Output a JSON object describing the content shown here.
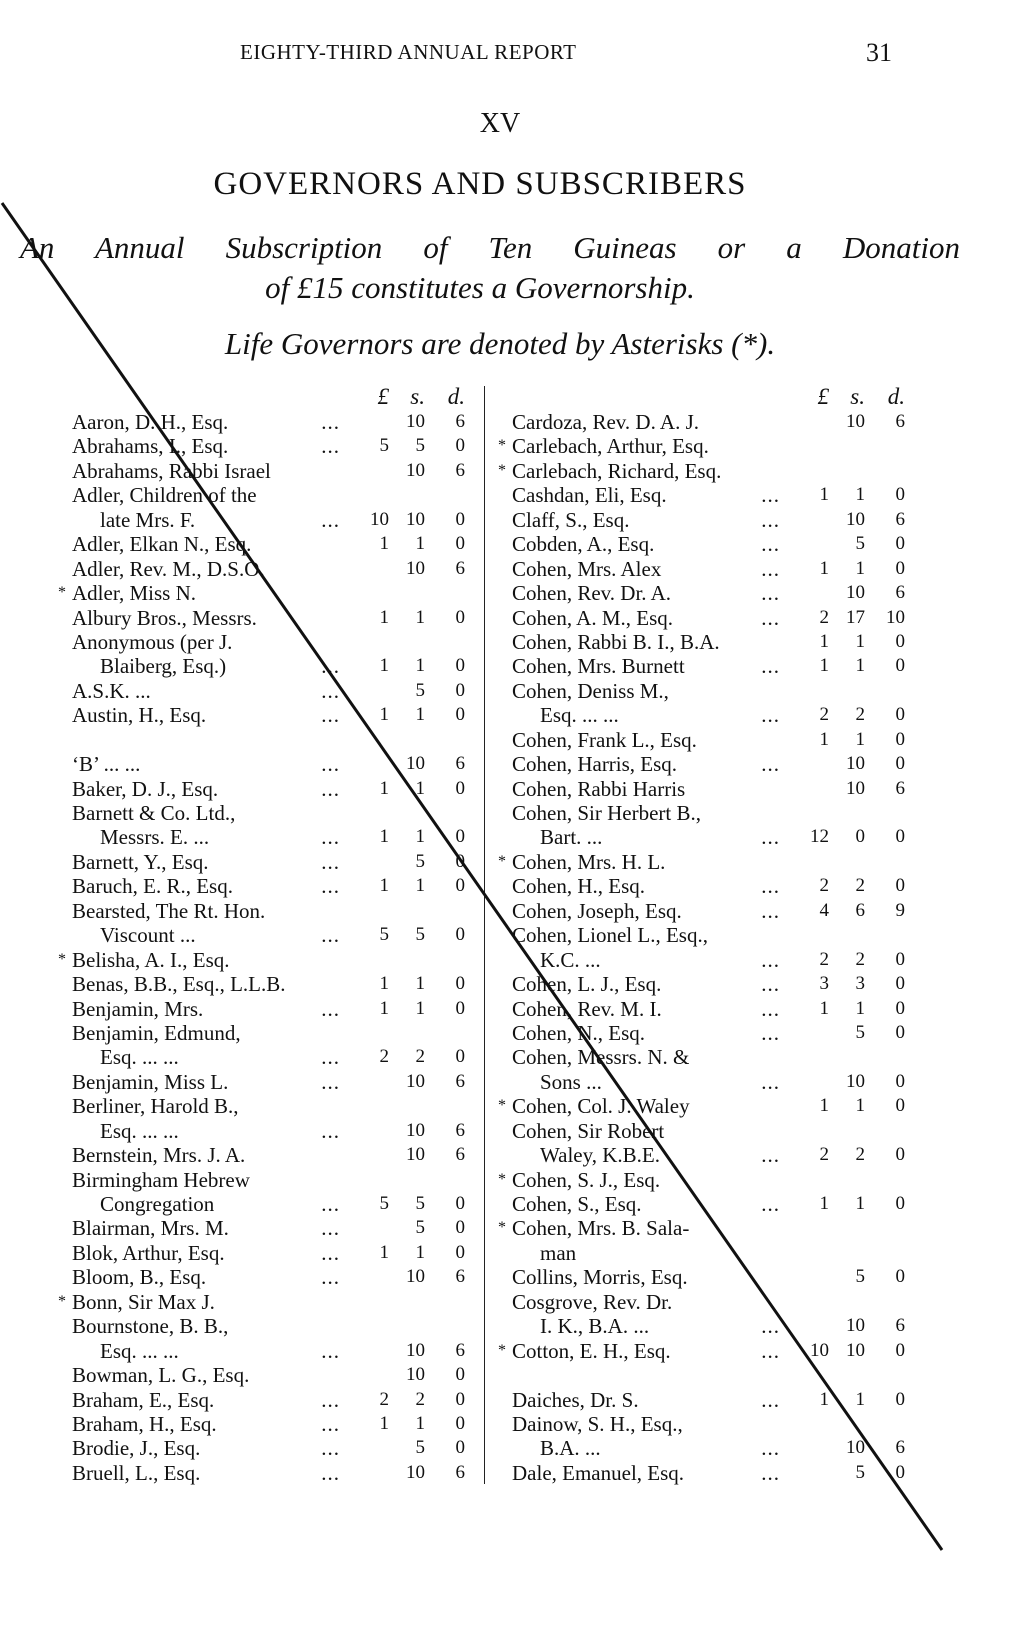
{
  "header": {
    "running_title": "EIGHTY-THIRD ANNUAL REPORT",
    "page_number": "31"
  },
  "section": "XV",
  "title": "GOVERNORS AND SUBSCRIBERS",
  "subtitle_lines": [
    "An Annual Subscription of Ten Guineas or a Donation",
    "of £15 constitutes a Governorship.",
    "Life Governors are denoted by Asterisks (*)."
  ],
  "column_headers": {
    "pounds": "£",
    "shillings": "s.",
    "pence": "d."
  },
  "left_column": [
    {
      "name": "Aaron, D. H., Esq.",
      "leader": "...",
      "l": "",
      "s": "10",
      "d": "6"
    },
    {
      "name": "Abrahams, I., Esq.",
      "leader": "...",
      "l": "5",
      "s": "5",
      "d": "0"
    },
    {
      "name": "Abrahams, Rabbi Israel",
      "leader": "",
      "l": "",
      "s": "10",
      "d": "6"
    },
    {
      "name": "Adler, Children of the",
      "leader": "",
      "l": "",
      "s": "",
      "d": ""
    },
    {
      "name": "late Mrs. F.",
      "cont": true,
      "leader": "...",
      "l": "10",
      "s": "10",
      "d": "0"
    },
    {
      "name": "Adler, Elkan N., Esq.",
      "leader": "",
      "l": "1",
      "s": "1",
      "d": "0"
    },
    {
      "name": "Adler, Rev. M., D.S.O.",
      "leader": "",
      "l": "",
      "s": "10",
      "d": "6"
    },
    {
      "name": "Adler, Miss N.",
      "life": true,
      "leader": "",
      "l": "",
      "s": "",
      "d": ""
    },
    {
      "name": "Albury Bros., Messrs.",
      "leader": "",
      "l": "1",
      "s": "1",
      "d": "0"
    },
    {
      "name": "Anonymous   (per   J.",
      "leader": "",
      "l": "",
      "s": "",
      "d": ""
    },
    {
      "name": "Blaiberg, Esq.)",
      "cont": true,
      "leader": "...",
      "l": "1",
      "s": "1",
      "d": "0"
    },
    {
      "name": "A.S.K.      ...",
      "leader": "...",
      "l": "",
      "s": "5",
      "d": "0"
    },
    {
      "name": "Austin, H., Esq.",
      "leader": "...",
      "l": "1",
      "s": "1",
      "d": "0"
    },
    {
      "name": "",
      "leader": "",
      "l": "",
      "s": "",
      "d": ""
    },
    {
      "name": "‘B’      ...      ...",
      "leader": "...",
      "l": "",
      "s": "10",
      "d": "6"
    },
    {
      "name": "Baker, D. J., Esq.",
      "leader": "...",
      "l": "1",
      "s": "1",
      "d": "0"
    },
    {
      "name": "Barnett  &  Co.  Ltd.,",
      "leader": "",
      "l": "",
      "s": "",
      "d": ""
    },
    {
      "name": "Messrs. E. ...",
      "cont": true,
      "leader": "...",
      "l": "1",
      "s": "1",
      "d": "0"
    },
    {
      "name": "Barnett, Y., Esq.",
      "leader": "...",
      "l": "",
      "s": "5",
      "d": "0"
    },
    {
      "name": "Baruch, E. R., Esq.",
      "leader": "...",
      "l": "1",
      "s": "1",
      "d": "0"
    },
    {
      "name": "Bearsted, The Rt. Hon.",
      "leader": "",
      "l": "",
      "s": "",
      "d": ""
    },
    {
      "name": "Viscount   ...",
      "cont": true,
      "leader": "...",
      "l": "5",
      "s": "5",
      "d": "0"
    },
    {
      "name": "Belisha, A. I., Esq.",
      "life": true,
      "leader": "",
      "l": "",
      "s": "",
      "d": ""
    },
    {
      "name": "Benas, B.B., Esq., L.L.B.",
      "leader": "",
      "l": "1",
      "s": "1",
      "d": "0"
    },
    {
      "name": "Benjamin, Mrs.",
      "leader": "...",
      "l": "1",
      "s": "1",
      "d": "0"
    },
    {
      "name": "Benjamin,      Edmund,",
      "leader": "",
      "l": "",
      "s": "",
      "d": ""
    },
    {
      "name": "Esq. ...     ...",
      "cont": true,
      "leader": "...",
      "l": "2",
      "s": "2",
      "d": "0"
    },
    {
      "name": "Benjamin, Miss L.",
      "leader": "...",
      "l": "",
      "s": "10",
      "d": "6"
    },
    {
      "name": "Berliner,    Harold    B.,",
      "leader": "",
      "l": "",
      "s": "",
      "d": ""
    },
    {
      "name": "Esq. ...     ...",
      "cont": true,
      "leader": "...",
      "l": "",
      "s": "10",
      "d": "6"
    },
    {
      "name": "Bernstein, Mrs. J. A.",
      "leader": "",
      "l": "",
      "s": "10",
      "d": "6"
    },
    {
      "name": "Birmingham   Hebrew",
      "leader": "",
      "l": "",
      "s": "",
      "d": ""
    },
    {
      "name": "Congregation",
      "cont": true,
      "leader": "...",
      "l": "5",
      "s": "5",
      "d": "0"
    },
    {
      "name": "Blairman, Mrs. M.",
      "leader": "...",
      "l": "",
      "s": "5",
      "d": "0"
    },
    {
      "name": "Blok, Arthur, Esq.",
      "leader": "...",
      "l": "1",
      "s": "1",
      "d": "0"
    },
    {
      "name": "Bloom, B., Esq.",
      "leader": "...",
      "l": "",
      "s": "10",
      "d": "6"
    },
    {
      "name": "Bonn, Sir Max J.",
      "life": true,
      "leader": "",
      "l": "",
      "s": "",
      "d": ""
    },
    {
      "name": "Bournstone,    B.    B.,",
      "leader": "",
      "l": "",
      "s": "",
      "d": ""
    },
    {
      "name": "Esq. ...     ...",
      "cont": true,
      "leader": "...",
      "l": "",
      "s": "10",
      "d": "6"
    },
    {
      "name": "Bowman, L. G., Esq.",
      "leader": "",
      "l": "",
      "s": "10",
      "d": "0"
    },
    {
      "name": "Braham, E., Esq.",
      "leader": "...",
      "l": "2",
      "s": "2",
      "d": "0"
    },
    {
      "name": "Braham, H., Esq.",
      "leader": "...",
      "l": "1",
      "s": "1",
      "d": "0"
    },
    {
      "name": "Brodie, J., Esq.",
      "leader": "...",
      "l": "",
      "s": "5",
      "d": "0"
    },
    {
      "name": "Bruell, L., Esq.",
      "leader": "...",
      "l": "",
      "s": "10",
      "d": "6"
    }
  ],
  "right_column": [
    {
      "name": "Cardoza, Rev. D. A. J.",
      "leader": "",
      "l": "",
      "s": "10",
      "d": "6"
    },
    {
      "name": "Carlebach, Arthur, Esq.",
      "life": true,
      "leader": "",
      "l": "",
      "s": "",
      "d": ""
    },
    {
      "name": "Carlebach, Richard, Esq.",
      "life": true,
      "leader": "",
      "l": "",
      "s": "",
      "d": ""
    },
    {
      "name": "Cashdan, Eli, Esq.",
      "leader": "...",
      "l": "1",
      "s": "1",
      "d": "0"
    },
    {
      "name": "Claff, S., Esq.",
      "leader": "...",
      "l": "",
      "s": "10",
      "d": "6"
    },
    {
      "name": "Cobden, A., Esq.",
      "leader": "...",
      "l": "",
      "s": "5",
      "d": "0"
    },
    {
      "name": "Cohen, Mrs. Alex",
      "leader": "...",
      "l": "1",
      "s": "1",
      "d": "0"
    },
    {
      "name": "Cohen, Rev. Dr. A.",
      "leader": "...",
      "l": "",
      "s": "10",
      "d": "6"
    },
    {
      "name": "Cohen, A. M., Esq.",
      "leader": "...",
      "l": "2",
      "s": "17",
      "d": "10"
    },
    {
      "name": "Cohen, Rabbi B. I., B.A.",
      "leader": "",
      "l": "1",
      "s": "1",
      "d": "0"
    },
    {
      "name": "Cohen, Mrs. Burnett",
      "leader": "...",
      "l": "1",
      "s": "1",
      "d": "0"
    },
    {
      "name": "Cohen,    Deniss    M.,",
      "leader": "",
      "l": "",
      "s": "",
      "d": ""
    },
    {
      "name": "Esq. ...     ...",
      "cont": true,
      "leader": "...",
      "l": "2",
      "s": "2",
      "d": "0"
    },
    {
      "name": "Cohen, Frank L., Esq.",
      "leader": "",
      "l": "1",
      "s": "1",
      "d": "0"
    },
    {
      "name": "Cohen, Harris, Esq.",
      "leader": "...",
      "l": "",
      "s": "10",
      "d": "0"
    },
    {
      "name": "Cohen, Rabbi Harris",
      "leader": "",
      "l": "",
      "s": "10",
      "d": "6"
    },
    {
      "name": "Cohen, Sir Herbert B.,",
      "leader": "",
      "l": "",
      "s": "",
      "d": ""
    },
    {
      "name": "Bart.      ...",
      "cont": true,
      "leader": "...",
      "l": "12",
      "s": "0",
      "d": "0"
    },
    {
      "name": "Cohen, Mrs. H. L.",
      "life": true,
      "leader": "",
      "l": "",
      "s": "",
      "d": ""
    },
    {
      "name": "Cohen, H., Esq.",
      "leader": "...",
      "l": "2",
      "s": "2",
      "d": "0"
    },
    {
      "name": "Cohen, Joseph, Esq.",
      "leader": "...",
      "l": "4",
      "s": "6",
      "d": "9"
    },
    {
      "name": "Cohen, Lionel L., Esq.,",
      "leader": "",
      "l": "",
      "s": "",
      "d": ""
    },
    {
      "name": "K.C.      ...",
      "cont": true,
      "leader": "...",
      "l": "2",
      "s": "2",
      "d": "0"
    },
    {
      "name": "Cohen, L. J., Esq.",
      "leader": "...",
      "l": "3",
      "s": "3",
      "d": "0"
    },
    {
      "name": "Cohen, Rev. M. I.",
      "leader": "...",
      "l": "1",
      "s": "1",
      "d": "0"
    },
    {
      "name": "Cohen, N., Esq.",
      "leader": "...",
      "l": "",
      "s": "5",
      "d": "0"
    },
    {
      "name": "Cohen, Messrs. N. &",
      "leader": "",
      "l": "",
      "s": "",
      "d": ""
    },
    {
      "name": "Sons      ...",
      "cont": true,
      "leader": "...",
      "l": "",
      "s": "10",
      "d": "0"
    },
    {
      "name": "Cohen, Col. J. Waley",
      "life": true,
      "leader": "",
      "l": "1",
      "s": "1",
      "d": "0"
    },
    {
      "name": "Cohen,    Sir    Robert",
      "leader": "",
      "l": "",
      "s": "",
      "d": ""
    },
    {
      "name": "Waley, K.B.E.",
      "cont": true,
      "leader": "...",
      "l": "2",
      "s": "2",
      "d": "0"
    },
    {
      "name": "Cohen, S. J., Esq.",
      "life": true,
      "leader": "",
      "l": "",
      "s": "",
      "d": ""
    },
    {
      "name": "Cohen, S., Esq.",
      "leader": "...",
      "l": "1",
      "s": "1",
      "d": "0"
    },
    {
      "name": "Cohen, Mrs. B. Sala-",
      "life": true,
      "leader": "",
      "l": "",
      "s": "",
      "d": ""
    },
    {
      "name": "man",
      "cont": true,
      "leader": "",
      "l": "",
      "s": "",
      "d": ""
    },
    {
      "name": "Collins, Morris, Esq.",
      "leader": "",
      "l": "",
      "s": "5",
      "d": "0"
    },
    {
      "name": "Cosgrove,    Rev.    Dr.",
      "leader": "",
      "l": "",
      "s": "",
      "d": ""
    },
    {
      "name": "I. K., B.A. ...",
      "cont": true,
      "leader": "...",
      "l": "",
      "s": "10",
      "d": "6"
    },
    {
      "name": "Cotton, E. H., Esq.",
      "life": true,
      "leader": "...",
      "l": "10",
      "s": "10",
      "d": "0"
    },
    {
      "name": "",
      "leader": "",
      "l": "",
      "s": "",
      "d": ""
    },
    {
      "name": "Daiches, Dr. S.",
      "leader": "...",
      "l": "1",
      "s": "1",
      "d": "0"
    },
    {
      "name": "Dainow, S. H., Esq.,",
      "leader": "",
      "l": "",
      "s": "",
      "d": ""
    },
    {
      "name": "B.A.      ...",
      "cont": true,
      "leader": "...",
      "l": "",
      "s": "10",
      "d": "6"
    },
    {
      "name": "Dale, Emanuel, Esq.",
      "leader": "...",
      "l": "",
      "s": "5",
      "d": "0"
    }
  ]
}
